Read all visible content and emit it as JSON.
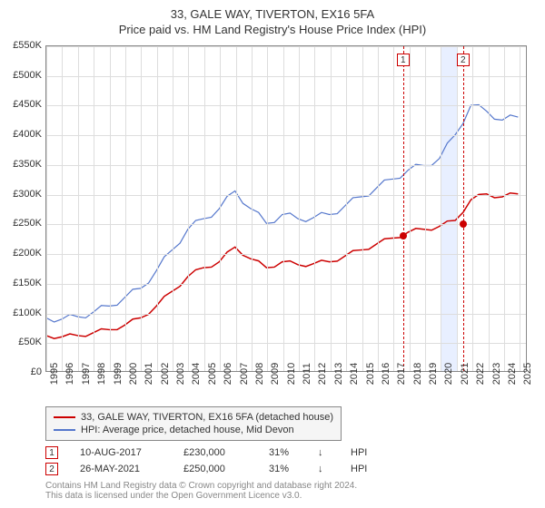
{
  "title": "33, GALE WAY, TIVERTON, EX16 5FA",
  "subtitle": "Price paid vs. HM Land Registry's House Price Index (HPI)",
  "chart": {
    "type": "line",
    "background_color": "#ffffff",
    "grid_color": "#dddddd",
    "border_color": "#888888",
    "xlim": [
      1995,
      2025.5
    ],
    "ylim": [
      0,
      550000
    ],
    "ytick_step": 50000,
    "ytick_labels": [
      "£0",
      "£50K",
      "£100K",
      "£150K",
      "£200K",
      "£250K",
      "£300K",
      "£350K",
      "£400K",
      "£450K",
      "£500K",
      "£550K"
    ],
    "xtick_years": [
      1995,
      1996,
      1997,
      1998,
      1999,
      2000,
      2001,
      2002,
      2003,
      2004,
      2005,
      2006,
      2007,
      2008,
      2009,
      2010,
      2011,
      2012,
      2013,
      2014,
      2015,
      2016,
      2017,
      2018,
      2019,
      2020,
      2021,
      2022,
      2023,
      2024,
      2025
    ],
    "shade_band": {
      "from": 2020,
      "to": 2021,
      "color": "#e8efff"
    },
    "series": [
      {
        "name": "property",
        "label": "33, GALE WAY, TIVERTON, EX16 5FA (detached house)",
        "color": "#cc0000",
        "line_width": 1.5,
        "points": [
          [
            1995,
            60000
          ],
          [
            1996,
            58000
          ],
          [
            1997,
            60000
          ],
          [
            1998,
            65000
          ],
          [
            1999,
            70000
          ],
          [
            2000,
            78000
          ],
          [
            2001,
            90000
          ],
          [
            2002,
            110000
          ],
          [
            2003,
            135000
          ],
          [
            2004,
            160000
          ],
          [
            2005,
            175000
          ],
          [
            2006,
            185000
          ],
          [
            2007,
            210000
          ],
          [
            2008,
            190000
          ],
          [
            2009,
            175000
          ],
          [
            2010,
            185000
          ],
          [
            2011,
            180000
          ],
          [
            2012,
            182000
          ],
          [
            2013,
            185000
          ],
          [
            2014,
            195000
          ],
          [
            2015,
            205000
          ],
          [
            2016,
            215000
          ],
          [
            2017,
            225000
          ],
          [
            2018,
            235000
          ],
          [
            2019,
            240000
          ],
          [
            2020,
            245000
          ],
          [
            2021,
            255000
          ],
          [
            2022,
            290000
          ],
          [
            2023,
            300000
          ],
          [
            2024,
            295000
          ],
          [
            2025,
            300000
          ]
        ]
      },
      {
        "name": "hpi",
        "label": "HPI: Average price, detached house, Mid Devon",
        "color": "#5577cc",
        "line_width": 1.2,
        "points": [
          [
            1995,
            90000
          ],
          [
            1996,
            88000
          ],
          [
            1997,
            92000
          ],
          [
            1998,
            100000
          ],
          [
            1999,
            110000
          ],
          [
            2000,
            125000
          ],
          [
            2001,
            140000
          ],
          [
            2002,
            170000
          ],
          [
            2003,
            205000
          ],
          [
            2004,
            240000
          ],
          [
            2005,
            258000
          ],
          [
            2006,
            275000
          ],
          [
            2007,
            305000
          ],
          [
            2008,
            275000
          ],
          [
            2009,
            250000
          ],
          [
            2010,
            265000
          ],
          [
            2011,
            258000
          ],
          [
            2012,
            260000
          ],
          [
            2013,
            265000
          ],
          [
            2014,
            280000
          ],
          [
            2015,
            295000
          ],
          [
            2016,
            310000
          ],
          [
            2017,
            325000
          ],
          [
            2018,
            340000
          ],
          [
            2019,
            348000
          ],
          [
            2020,
            360000
          ],
          [
            2021,
            400000
          ],
          [
            2022,
            450000
          ],
          [
            2023,
            440000
          ],
          [
            2024,
            425000
          ],
          [
            2025,
            430000
          ]
        ]
      }
    ],
    "sales": [
      {
        "id": "1",
        "date": "10-AUG-2017",
        "xyear": 2017.6,
        "price": 230000,
        "price_label": "£230,000",
        "pct": "31%",
        "direction": "↓",
        "vs": "HPI"
      },
      {
        "id": "2",
        "date": "26-MAY-2021",
        "xyear": 2021.4,
        "price": 250000,
        "price_label": "£250,000",
        "pct": "31%",
        "direction": "↓",
        "vs": "HPI"
      }
    ]
  },
  "legend_bg": "#f5f5f5",
  "footnote_line1": "Contains HM Land Registry data © Crown copyright and database right 2024.",
  "footnote_line2": "This data is licensed under the Open Government Licence v3.0.",
  "footnote_color": "#888888"
}
